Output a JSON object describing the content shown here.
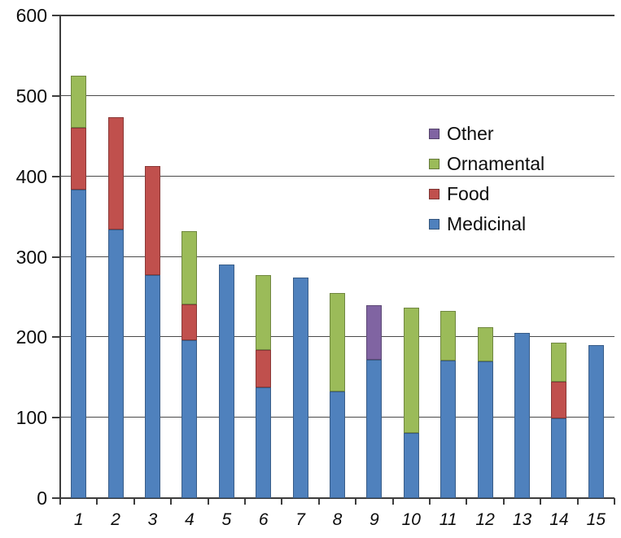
{
  "figure": {
    "background": "#ffffff",
    "text_color": "#0d0d0d",
    "gridline_color": "#3d3d3d"
  },
  "chart_data": {
    "type": "bar",
    "stacked": true,
    "title": "",
    "xlabel": "",
    "ylabel": "",
    "categories": [
      "1",
      "2",
      "3",
      "4",
      "5",
      "6",
      "7",
      "8",
      "9",
      "10",
      "11",
      "12",
      "13",
      "14",
      "15"
    ],
    "series": [
      {
        "name": "Medicinal",
        "color": "#4F81BD",
        "values": [
          383,
          334,
          277,
          196,
          290,
          138,
          274,
          133,
          172,
          81,
          171,
          170,
          205,
          99,
          190
        ]
      },
      {
        "name": "Food",
        "color": "#C0504D",
        "values": [
          77,
          140,
          136,
          45,
          0,
          46,
          0,
          0,
          0,
          0,
          0,
          0,
          0,
          46,
          0
        ]
      },
      {
        "name": "Ornamental",
        "color": "#9BBB59",
        "values": [
          65,
          0,
          0,
          91,
          0,
          93,
          0,
          122,
          0,
          156,
          62,
          42,
          0,
          48,
          0
        ]
      },
      {
        "name": "Other",
        "color": "#8064A2",
        "values": [
          0,
          0,
          0,
          0,
          0,
          0,
          0,
          0,
          68,
          0,
          0,
          0,
          0,
          0,
          0
        ]
      }
    ],
    "totals": [
      525,
      474,
      413,
      332,
      290,
      277,
      274,
      255,
      240,
      237,
      233,
      212,
      205,
      193,
      190
    ],
    "ylim": [
      0,
      600
    ],
    "yticks": [
      0,
      100,
      200,
      300,
      400,
      500,
      600
    ],
    "ytick_labels": [
      "0",
      "100",
      "200",
      "300",
      "400",
      "500",
      "600"
    ],
    "grid": true,
    "legend_position": "center-right-overlay",
    "legend_order": [
      "Other",
      "Ornamental",
      "Food",
      "Medicinal"
    ],
    "x_labels_italic": true
  }
}
